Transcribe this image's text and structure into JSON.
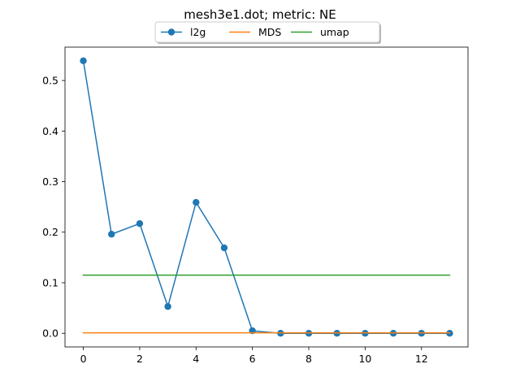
{
  "chart_data": {
    "type": "line",
    "title": "mesh3e1.dot; metric: NE",
    "xlabel": "",
    "ylabel": "",
    "xlim": [
      -0.65,
      13.65
    ],
    "ylim": [
      -0.027,
      0.566
    ],
    "xticks": [
      0,
      2,
      4,
      6,
      8,
      10,
      12
    ],
    "xtick_labels": [
      "0",
      "2",
      "4",
      "6",
      "8",
      "10",
      "12"
    ],
    "yticks": [
      0.0,
      0.1,
      0.2,
      0.3,
      0.4,
      0.5
    ],
    "ytick_labels": [
      "0.0",
      "0.1",
      "0.2",
      "0.3",
      "0.4",
      "0.5"
    ],
    "grid": false,
    "legend_position": "top-center",
    "series": [
      {
        "name": "l2g",
        "color": "#1f77b4",
        "marker": "circle",
        "x": [
          0,
          1,
          2,
          3,
          4,
          5,
          6,
          7,
          8,
          9,
          10,
          11,
          12,
          13
        ],
        "values": [
          0.539,
          0.196,
          0.217,
          0.053,
          0.259,
          0.169,
          0.005,
          0.0,
          0.0,
          0.0,
          0.0,
          0.0,
          0.0,
          0.0
        ]
      },
      {
        "name": "MDS",
        "color": "#ff7f0e",
        "marker": "none",
        "x": [
          0,
          13
        ],
        "values": [
          0.001,
          0.001
        ]
      },
      {
        "name": "umap",
        "color": "#2ca02c",
        "marker": "none",
        "x": [
          0,
          13
        ],
        "values": [
          0.115,
          0.115
        ]
      }
    ]
  }
}
